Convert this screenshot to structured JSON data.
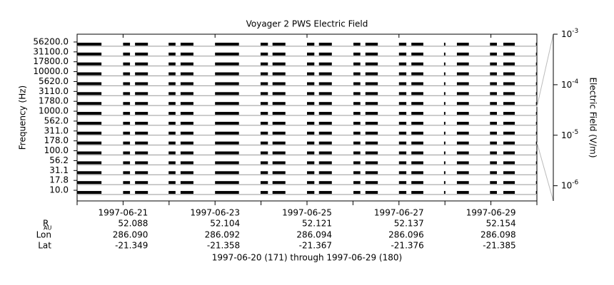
{
  "chart_data": {
    "type": "strip",
    "title": "Voyager 2 PWS Electric Field",
    "ylabel": "Frequency (Hz)",
    "y2label": "Electric Field (V/m)",
    "footer": "1997-06-20 (171) through 1997-06-29 (180)",
    "channels": [
      {
        "value": 10,
        "label": "10.0"
      },
      {
        "value": 17.8,
        "label": "17.8"
      },
      {
        "value": 31.1,
        "label": "31.1"
      },
      {
        "value": 56.2,
        "label": "56.2"
      },
      {
        "value": 100,
        "label": "100.0"
      },
      {
        "value": 178,
        "label": "178.0"
      },
      {
        "value": 311,
        "label": "311.0"
      },
      {
        "value": 562,
        "label": "562.0"
      },
      {
        "value": 1000,
        "label": "1000.0"
      },
      {
        "value": 1780,
        "label": "1780.0"
      },
      {
        "value": 3110,
        "label": "3110.0"
      },
      {
        "value": 5620,
        "label": "5620.0"
      },
      {
        "value": 10000,
        "label": "10000.0"
      },
      {
        "value": 17800,
        "label": "17800.0"
      },
      {
        "value": 31100,
        "label": "31100.0"
      },
      {
        "value": 56200,
        "label": "56200.0"
      }
    ],
    "color": "#000000",
    "xlim": [
      171,
      181
    ],
    "xticks": [
      {
        "value": 172,
        "label": "1997-06-21"
      },
      {
        "value": 174,
        "label": "1997-06-23"
      },
      {
        "value": 176,
        "label": "1997-06-25"
      },
      {
        "value": 178,
        "label": "1997-06-27"
      },
      {
        "value": 180,
        "label": "1997-06-29"
      }
    ],
    "xminorticks": [
      171,
      173,
      175,
      177,
      179,
      181
    ],
    "segments": [
      [
        171.0,
        171.53
      ],
      [
        172.0,
        172.15
      ],
      [
        172.26,
        172.54
      ],
      [
        172.99,
        173.14
      ],
      [
        173.25,
        173.53
      ],
      [
        174.0,
        174.52
      ],
      [
        174.99,
        175.15
      ],
      [
        175.25,
        175.53
      ],
      [
        176.0,
        176.16
      ],
      [
        176.26,
        176.54
      ],
      [
        177.01,
        177.16
      ],
      [
        177.27,
        177.54
      ],
      [
        178.0,
        178.16
      ],
      [
        178.27,
        178.53
      ],
      [
        178.98,
        179.01
      ],
      [
        179.26,
        179.52
      ],
      [
        179.98,
        180.13
      ],
      [
        180.27,
        180.52
      ],
      [
        180.98,
        181.0
      ]
    ],
    "y2lim": [
      5e-07,
      0.001
    ],
    "y2scale": "log",
    "y2ticks": [
      {
        "value": 0.001,
        "label": "10^-3"
      },
      {
        "value": 0.0001,
        "label": "10^-4"
      },
      {
        "value": 1e-05,
        "label": "10^-5"
      },
      {
        "value": 1e-06,
        "label": "10^-6"
      }
    ],
    "ephemeris": [
      {
        "label": "R",
        "subscript": "AU",
        "values": [
          "52.088",
          "52.104",
          "52.121",
          "52.137",
          "52.154"
        ]
      },
      {
        "label": "Lon",
        "values": [
          "286.090",
          "286.092",
          "286.094",
          "286.096",
          "286.098"
        ]
      },
      {
        "label": "Lat",
        "values": [
          "-21.349",
          "-21.358",
          "-21.367",
          "-21.376",
          "-21.385"
        ]
      }
    ]
  }
}
